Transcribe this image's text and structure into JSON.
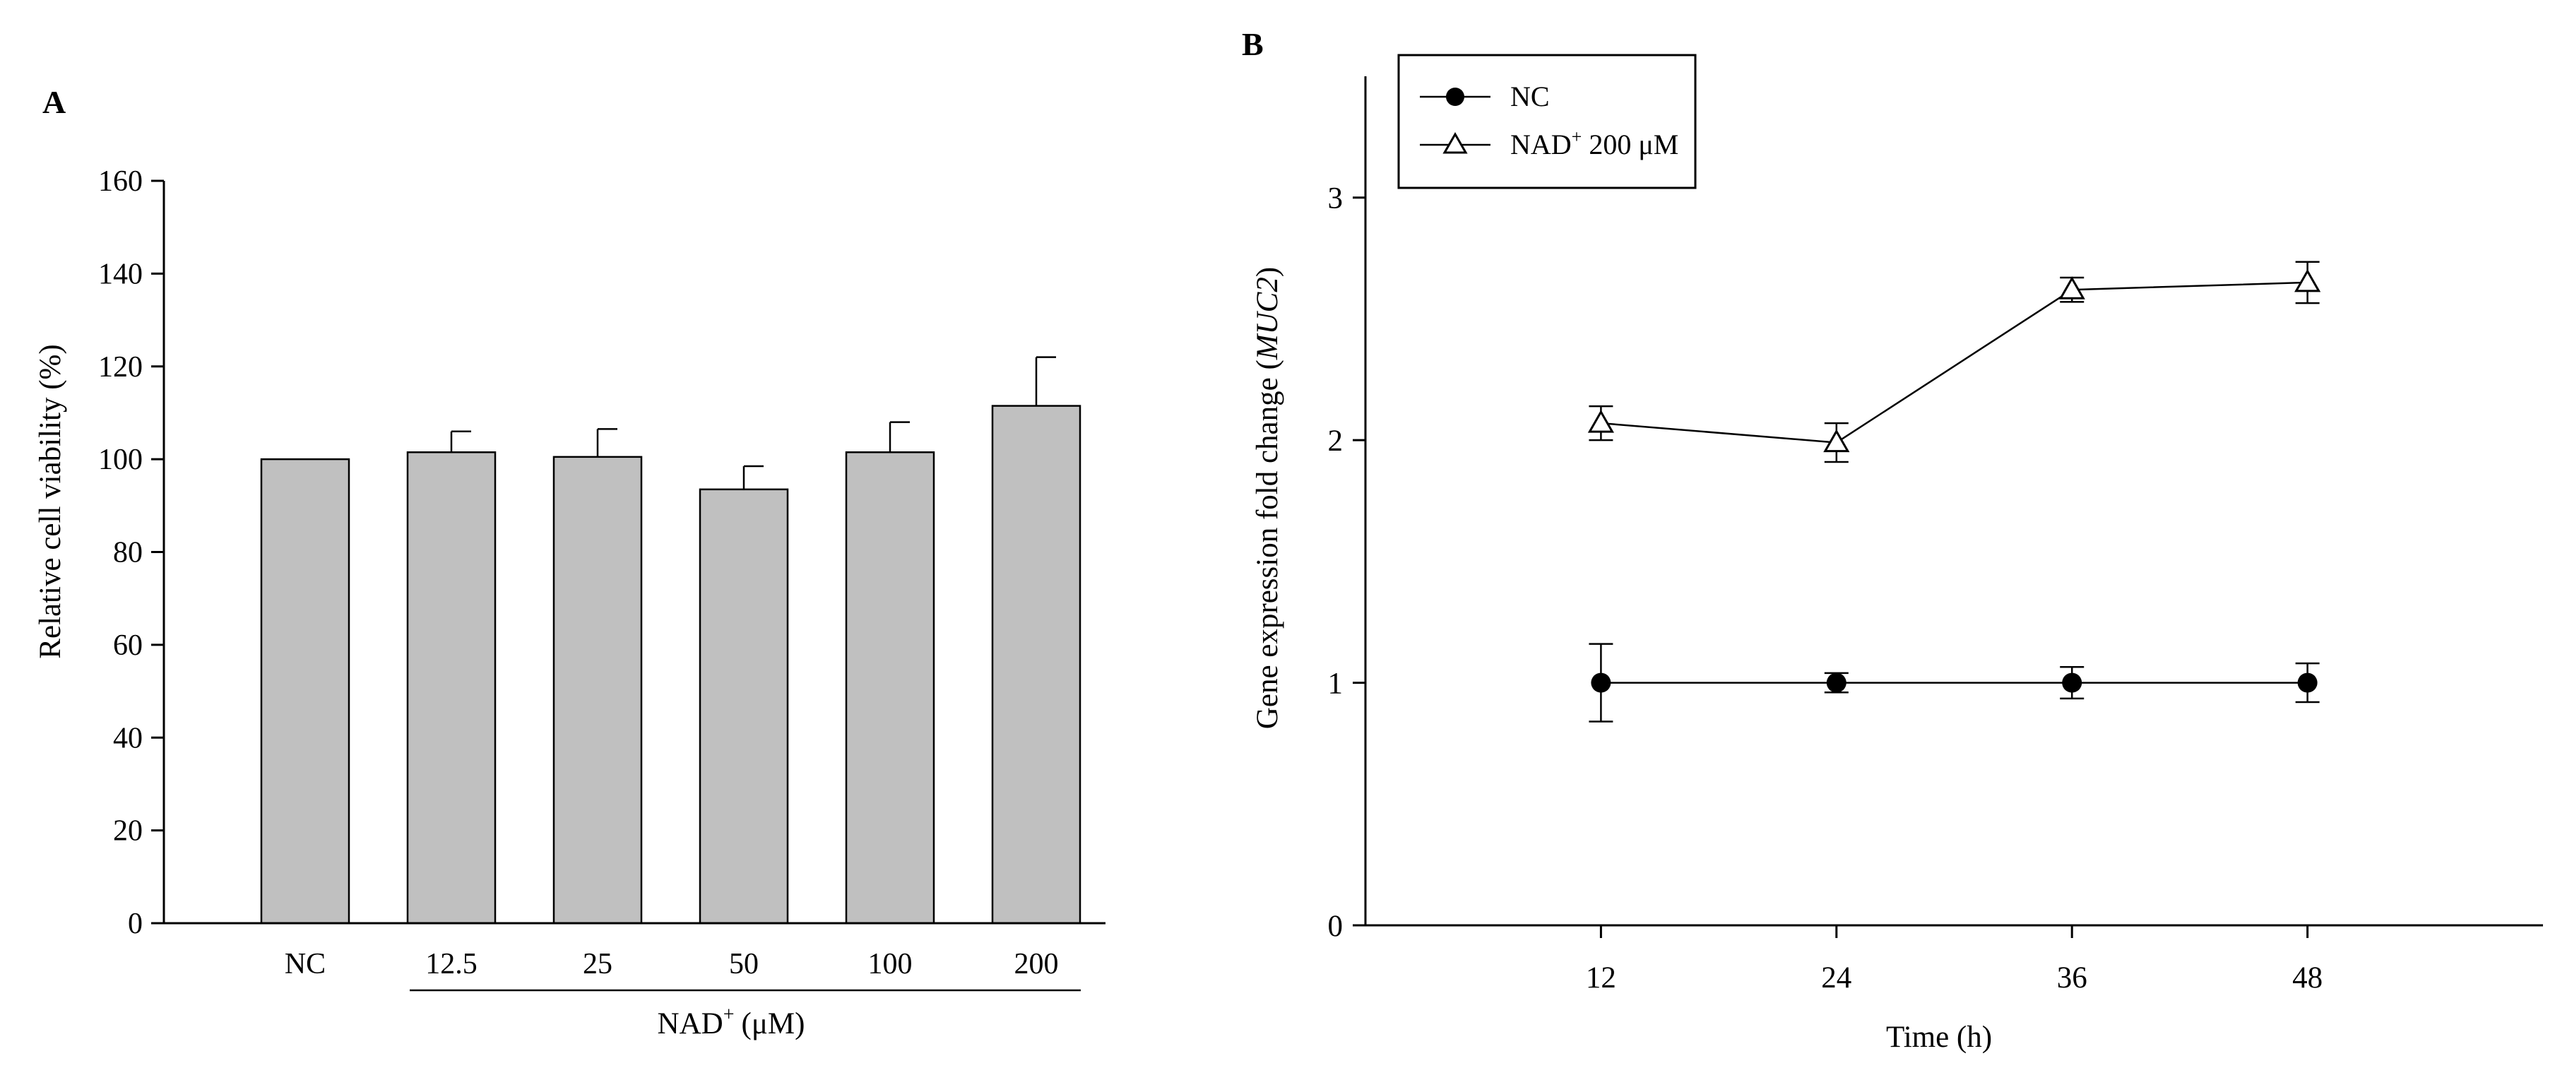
{
  "chart_data": [
    {
      "panel": "A",
      "type": "bar",
      "title": "",
      "xlabel_base": "NAD",
      "xlabel_sup": "+",
      "xlabel_unit": "(μM)",
      "ylabel": "Relative cell viability (%)",
      "categories": [
        "NC",
        "12.5",
        "25",
        "50",
        "100",
        "200"
      ],
      "values": [
        100,
        101.5,
        100.5,
        93.5,
        101.5,
        111.5
      ],
      "errors": [
        0,
        4.5,
        6,
        5,
        6.5,
        10.5
      ],
      "ylim": [
        0,
        160
      ],
      "yticks": [
        "0",
        "20",
        "40",
        "60",
        "80",
        "100",
        "120",
        "140",
        "160"
      ],
      "grid": false,
      "bar_color": "#c0c0c0"
    },
    {
      "panel": "B",
      "type": "line",
      "title": "",
      "xlabel": "Time (h)",
      "ylabel_main": "Gene expression fold change (",
      "ylabel_italic": "MUC2",
      "ylabel_end": ")",
      "x": [
        12,
        24,
        36,
        48
      ],
      "xticks": [
        "12",
        "24",
        "36",
        "48"
      ],
      "xlim": [
        0,
        60
      ],
      "ylim": [
        0,
        3.5
      ],
      "yticks": [
        "0",
        "1",
        "2",
        "3"
      ],
      "grid": false,
      "legend_position": "top-left",
      "series": [
        {
          "name": "NC",
          "marker": "filled-circle",
          "values": [
            1.0,
            1.0,
            1.0,
            1.0
          ],
          "errors": [
            0.16,
            0.04,
            0.065,
            0.08
          ]
        },
        {
          "name_base": "NAD",
          "name_sup": "+",
          "name_rest": " 200 μM",
          "marker": "open-triangle",
          "values": [
            2.07,
            1.99,
            2.62,
            2.65
          ],
          "errors": [
            0.07,
            0.08,
            0.05,
            0.085
          ]
        }
      ]
    }
  ]
}
